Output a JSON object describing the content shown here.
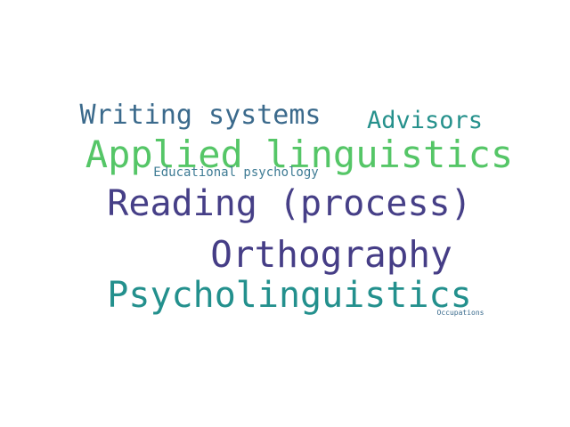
{
  "words": [
    {
      "text": "Writing systems",
      "color": "#3b6a8c"
    },
    {
      "text": "Advisors",
      "color": "#26918c"
    },
    {
      "text": "Applied linguistics",
      "color": "#55c667"
    },
    {
      "text": "Educational psychology",
      "color": "#3e7b94"
    },
    {
      "text": "Reading (process)",
      "color": "#463f87"
    },
    {
      "text": "Orthography",
      "color": "#453d86"
    },
    {
      "text": "Psycholinguistics",
      "color": "#23908d"
    },
    {
      "text": "Occupations",
      "color": "#3a6b8d"
    }
  ]
}
